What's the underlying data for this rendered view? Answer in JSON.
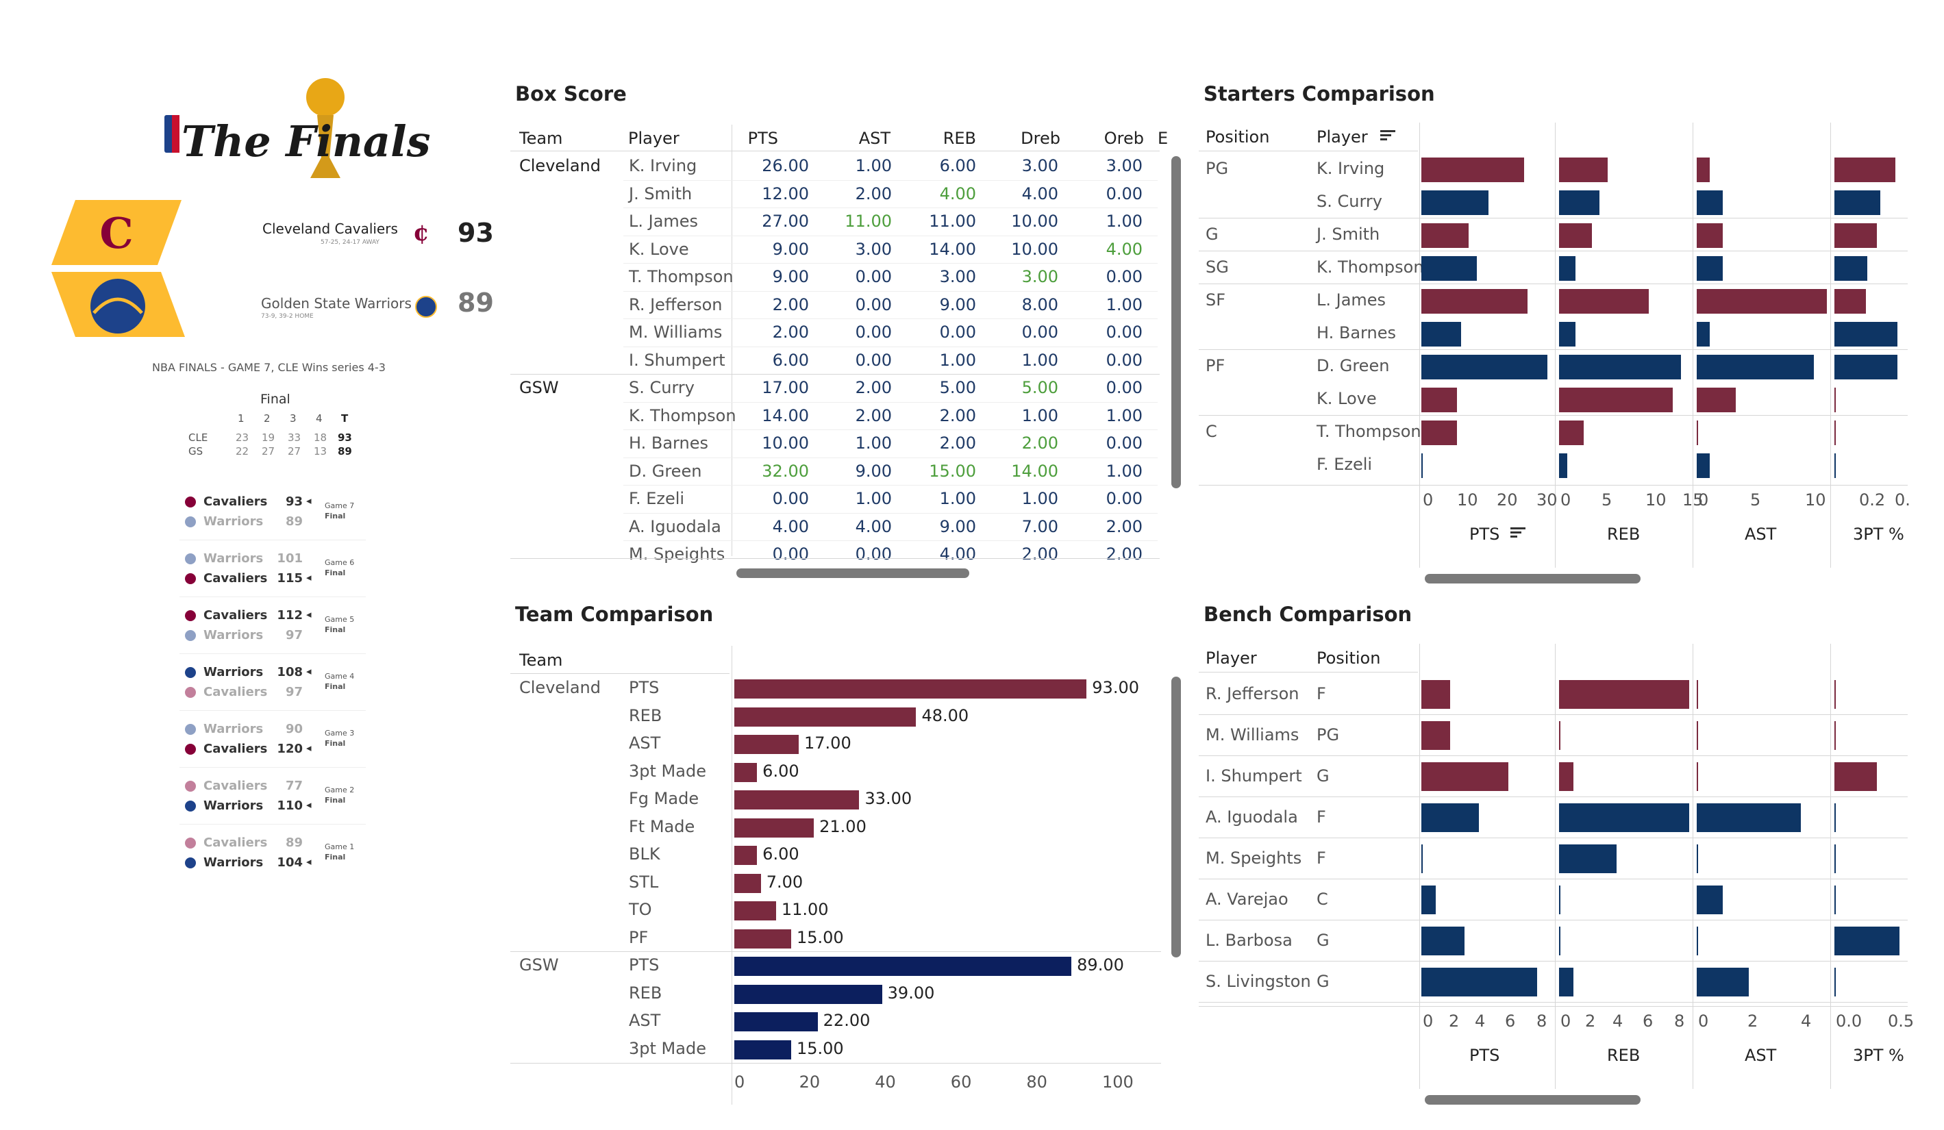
{
  "left_panel": {
    "logo_text": "The Finals",
    "teams": [
      {
        "name": "Cleveland Cavaliers",
        "record": "57-25, 24-17 AWAY",
        "score": "93"
      },
      {
        "name": "Golden State Warriors",
        "record": "73-9, 39-2 HOME",
        "score": "89"
      }
    ],
    "series_text": "NBA FINALS - GAME 7, CLE Wins series 4-3",
    "final_label": "Final",
    "linescore": {
      "headers": [
        "1",
        "2",
        "3",
        "4",
        "T"
      ],
      "rows": [
        {
          "team": "CLE",
          "q": [
            "23",
            "19",
            "33",
            "18"
          ],
          "t": "93"
        },
        {
          "team": "GS",
          "q": [
            "22",
            "27",
            "27",
            "13"
          ],
          "t": "89"
        }
      ]
    },
    "games": [
      {
        "top": "Cavaliers",
        "top_score": "93",
        "bottom": "Warriors",
        "bottom_score": "89",
        "top_win": true,
        "game": "Game 7",
        "status": "Final"
      },
      {
        "top": "Warriors",
        "top_score": "101",
        "bottom": "Cavaliers",
        "bottom_score": "115",
        "top_win": false,
        "game": "Game 6",
        "status": "Final"
      },
      {
        "top": "Cavaliers",
        "top_score": "112",
        "bottom": "Warriors",
        "bottom_score": "97",
        "top_win": true,
        "game": "Game 5",
        "status": "Final"
      },
      {
        "top": "Warriors",
        "top_score": "108",
        "bottom": "Cavaliers",
        "bottom_score": "97",
        "top_win": true,
        "game": "Game 4",
        "status": "Final"
      },
      {
        "top": "Warriors",
        "top_score": "90",
        "bottom": "Cavaliers",
        "bottom_score": "120",
        "top_win": false,
        "game": "Game 3",
        "status": "Final"
      },
      {
        "top": "Cavaliers",
        "top_score": "77",
        "bottom": "Warriors",
        "bottom_score": "110",
        "top_win": false,
        "game": "Game 2",
        "status": "Final"
      },
      {
        "top": "Cavaliers",
        "top_score": "89",
        "bottom": "Warriors",
        "bottom_score": "104",
        "top_win": false,
        "game": "Game 1",
        "status": "Final"
      }
    ]
  },
  "box_score": {
    "title": "Box Score",
    "headers": [
      "Team",
      "Player",
      "PTS",
      "AST",
      "REB",
      "Dreb",
      "Oreb",
      "E"
    ],
    "groups": [
      {
        "team": "Cleveland",
        "rows": [
          {
            "player": "K. Irving",
            "v": [
              "26.00",
              "1.00",
              "6.00",
              "3.00",
              "3.00"
            ]
          },
          {
            "player": "J. Smith",
            "v": [
              "12.00",
              "2.00",
              "4.00",
              "4.00",
              "0.00"
            ]
          },
          {
            "player": "L. James",
            "v": [
              "27.00",
              "11.00",
              "11.00",
              "10.00",
              "1.00"
            ]
          },
          {
            "player": "K. Love",
            "v": [
              "9.00",
              "3.00",
              "14.00",
              "10.00",
              "4.00"
            ]
          },
          {
            "player": "T. Thompson",
            "v": [
              "9.00",
              "0.00",
              "3.00",
              "3.00",
              "0.00"
            ]
          },
          {
            "player": "R. Jefferson",
            "v": [
              "2.00",
              "0.00",
              "9.00",
              "8.00",
              "1.00"
            ]
          },
          {
            "player": "M. Williams",
            "v": [
              "2.00",
              "0.00",
              "0.00",
              "0.00",
              "0.00"
            ]
          },
          {
            "player": "I. Shumpert",
            "v": [
              "6.00",
              "0.00",
              "1.00",
              "1.00",
              "0.00"
            ]
          }
        ]
      },
      {
        "team": "GSW",
        "rows": [
          {
            "player": "S. Curry",
            "v": [
              "17.00",
              "2.00",
              "5.00",
              "5.00",
              "0.00"
            ]
          },
          {
            "player": "K. Thompson",
            "v": [
              "14.00",
              "2.00",
              "2.00",
              "1.00",
              "1.00"
            ]
          },
          {
            "player": "H. Barnes",
            "v": [
              "10.00",
              "1.00",
              "2.00",
              "2.00",
              "0.00"
            ]
          },
          {
            "player": "D. Green",
            "v": [
              "32.00",
              "9.00",
              "15.00",
              "14.00",
              "1.00"
            ]
          },
          {
            "player": "F. Ezeli",
            "v": [
              "0.00",
              "1.00",
              "1.00",
              "1.00",
              "0.00"
            ]
          },
          {
            "player": "A. Iguodala",
            "v": [
              "4.00",
              "4.00",
              "9.00",
              "7.00",
              "2.00"
            ]
          },
          {
            "player": "M. Speights",
            "v": [
              "0.00",
              "0.00",
              "4.00",
              "2.00",
              "2.00"
            ]
          }
        ]
      }
    ],
    "highlight": {
      "green": [
        "0-2-1",
        "0-3-4",
        "1-3-0",
        "1-3-2",
        "1-3-3"
      ]
    }
  },
  "starters": {
    "title": "Starters Comparison",
    "headers": [
      "Position",
      "Player"
    ],
    "columns": [
      "PTS",
      "REB",
      "AST",
      "3PT %"
    ],
    "axis_ticks": [
      [
        "0",
        "10",
        "20",
        "30"
      ],
      [
        "0",
        "5",
        "10",
        "15"
      ],
      [
        "0",
        "5",
        "10"
      ],
      [
        "0.2",
        "0."
      ]
    ],
    "rows": [
      {
        "pos": "PG",
        "player": "K. Irving",
        "team": "cle",
        "v": [
          26,
          6,
          1,
          0.43
        ]
      },
      {
        "pos": "",
        "player": "S. Curry",
        "team": "gsw",
        "v": [
          17,
          5,
          2,
          0.32
        ]
      },
      {
        "pos": "G",
        "player": "J. Smith",
        "team": "cle",
        "v": [
          12,
          4,
          2,
          0.3
        ]
      },
      {
        "pos": "SG",
        "player": "K. Thompson",
        "team": "gsw",
        "v": [
          14,
          2,
          2,
          0.23
        ]
      },
      {
        "pos": "SF",
        "player": "L. James",
        "team": "cle",
        "v": [
          27,
          11,
          11,
          0.22
        ]
      },
      {
        "pos": "",
        "player": "H. Barnes",
        "team": "gsw",
        "v": [
          10,
          2,
          1,
          0.44
        ]
      },
      {
        "pos": "PF",
        "player": "D. Green",
        "team": "gsw",
        "v": [
          32,
          15,
          9,
          0.44
        ]
      },
      {
        "pos": "",
        "player": "K. Love",
        "team": "cle",
        "v": [
          9,
          14,
          3,
          0.01
        ]
      },
      {
        "pos": "C",
        "player": "T. Thompson",
        "team": "cle",
        "v": [
          9,
          3,
          0,
          0.01
        ]
      },
      {
        "pos": "",
        "player": "F. Ezeli",
        "team": "gsw",
        "v": [
          0,
          1,
          1,
          0.005
        ]
      }
    ]
  },
  "team_comparison": {
    "title": "Team Comparison",
    "header": "Team",
    "axis_ticks": [
      "0",
      "20",
      "40",
      "60",
      "80",
      "100"
    ],
    "groups": [
      {
        "team": "Cleveland",
        "color": "cle",
        "rows": [
          {
            "stat": "PTS",
            "value": 93,
            "label": "93.00"
          },
          {
            "stat": "REB",
            "value": 48,
            "label": "48.00"
          },
          {
            "stat": "AST",
            "value": 17,
            "label": "17.00"
          },
          {
            "stat": "3pt Made",
            "value": 6,
            "label": "6.00"
          },
          {
            "stat": "Fg Made",
            "value": 33,
            "label": "33.00"
          },
          {
            "stat": "Ft Made",
            "value": 21,
            "label": "21.00"
          },
          {
            "stat": "BLK",
            "value": 6,
            "label": "6.00"
          },
          {
            "stat": "STL",
            "value": 7,
            "label": "7.00"
          },
          {
            "stat": "TO",
            "value": 11,
            "label": "11.00"
          },
          {
            "stat": "PF",
            "value": 15,
            "label": "15.00"
          }
        ]
      },
      {
        "team": "GSW",
        "color": "gswd",
        "rows": [
          {
            "stat": "PTS",
            "value": 89,
            "label": "89.00"
          },
          {
            "stat": "REB",
            "value": 39,
            "label": "39.00"
          },
          {
            "stat": "AST",
            "value": 22,
            "label": "22.00"
          },
          {
            "stat": "3pt Made",
            "value": 15,
            "label": "15.00"
          }
        ]
      }
    ]
  },
  "bench": {
    "title": "Bench Comparison",
    "headers": [
      "Player",
      "Position"
    ],
    "columns": [
      "PTS",
      "REB",
      "AST",
      "3PT %"
    ],
    "axis_ticks": [
      [
        "0",
        "2",
        "4",
        "6",
        "8"
      ],
      [
        "0",
        "2",
        "4",
        "6",
        "8"
      ],
      [
        "0",
        "2",
        "4"
      ],
      [
        "0.0",
        "0.5"
      ]
    ],
    "rows": [
      {
        "player": "R. Jefferson",
        "pos": "F",
        "team": "cle",
        "v": [
          2,
          9,
          0,
          0.003
        ]
      },
      {
        "player": "M. Williams",
        "pos": "PG",
        "team": "cle",
        "v": [
          2,
          0,
          0,
          0.003
        ]
      },
      {
        "player": "I. Shumpert",
        "pos": "G",
        "team": "cle",
        "v": [
          6,
          1,
          0,
          0.33
        ]
      },
      {
        "player": "A. Iguodala",
        "pos": "F",
        "team": "gsw",
        "v": [
          4,
          9,
          4,
          0.003
        ]
      },
      {
        "player": "M. Speights",
        "pos": "F",
        "team": "gsw",
        "v": [
          0,
          4,
          0,
          0.003
        ]
      },
      {
        "player": "A. Varejao",
        "pos": "C",
        "team": "gsw",
        "v": [
          1,
          0,
          1,
          0.003
        ]
      },
      {
        "player": "L. Barbosa",
        "pos": "G",
        "team": "gsw",
        "v": [
          3,
          0,
          0,
          0.5
        ]
      },
      {
        "player": "S. Livingston",
        "pos": "G",
        "team": "gsw",
        "v": [
          8,
          1,
          2,
          0.003
        ]
      }
    ]
  },
  "colors": {
    "cle": "#7a2a3f",
    "gsw": "#0e3564",
    "gswd": "#0c1f5e",
    "green": "#4d9e3c"
  }
}
